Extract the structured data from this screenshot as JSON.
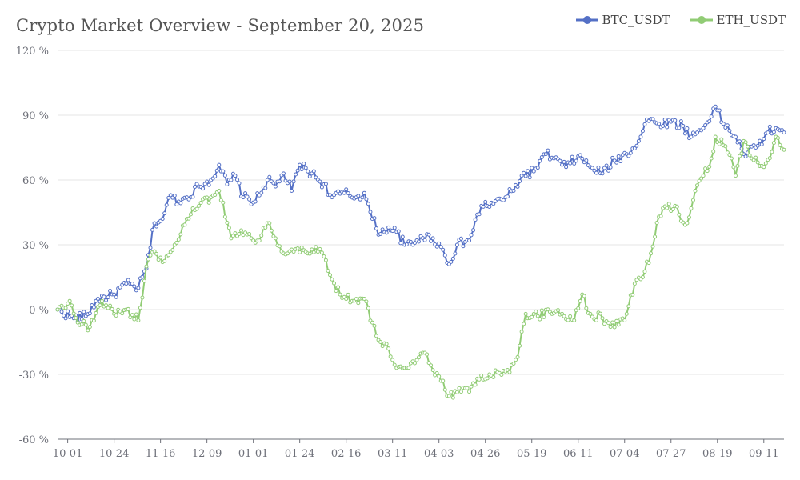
{
  "chart_data": {
    "type": "line",
    "title": "Crypto Market Overview - September 20, 2025",
    "xlabel": "",
    "ylabel": "",
    "y_unit": "%",
    "ylim": [
      -60,
      120
    ],
    "y_ticks": [
      -60,
      -30,
      0,
      30,
      60,
      90,
      120
    ],
    "y_tick_labels": [
      "-60 %",
      "-30 %",
      "0 %",
      "30 %",
      "60 %",
      "90 %",
      "120 %"
    ],
    "x_tick_labels": [
      "10-01",
      "10-24",
      "11-16",
      "12-09",
      "01-01",
      "01-24",
      "02-16",
      "03-11",
      "04-03",
      "04-26",
      "05-19",
      "06-11",
      "07-04",
      "07-27",
      "08-19",
      "09-11"
    ],
    "x_tick_index": [
      5,
      28,
      51,
      74,
      97,
      120,
      143,
      166,
      189,
      212,
      235,
      258,
      281,
      304,
      327,
      350
    ],
    "n_points": 361,
    "grid": true,
    "legend_position": "top-right",
    "series": [
      {
        "name": "BTC_USDT",
        "color": "#5470c6",
        "keypoints": [
          [
            0,
            0
          ],
          [
            8,
            -4
          ],
          [
            14,
            -3
          ],
          [
            20,
            5
          ],
          [
            28,
            7
          ],
          [
            34,
            12
          ],
          [
            40,
            10
          ],
          [
            44,
            19
          ],
          [
            48,
            40
          ],
          [
            52,
            42
          ],
          [
            56,
            53
          ],
          [
            60,
            50
          ],
          [
            64,
            52
          ],
          [
            70,
            57
          ],
          [
            76,
            60
          ],
          [
            80,
            67
          ],
          [
            84,
            58
          ],
          [
            88,
            62
          ],
          [
            92,
            52
          ],
          [
            98,
            50
          ],
          [
            104,
            60
          ],
          [
            108,
            57
          ],
          [
            112,
            63
          ],
          [
            116,
            55
          ],
          [
            120,
            67
          ],
          [
            126,
            63
          ],
          [
            132,
            58
          ],
          [
            136,
            52
          ],
          [
            142,
            54
          ],
          [
            148,
            52
          ],
          [
            152,
            54
          ],
          [
            156,
            42
          ],
          [
            160,
            35
          ],
          [
            164,
            38
          ],
          [
            168,
            36
          ],
          [
            172,
            30
          ],
          [
            176,
            30
          ],
          [
            180,
            34
          ],
          [
            186,
            33
          ],
          [
            190,
            29
          ],
          [
            194,
            21
          ],
          [
            198,
            30
          ],
          [
            204,
            32
          ],
          [
            210,
            48
          ],
          [
            216,
            49
          ],
          [
            222,
            52
          ],
          [
            226,
            55
          ],
          [
            230,
            62
          ],
          [
            236,
            64
          ],
          [
            242,
            72
          ],
          [
            246,
            70
          ],
          [
            252,
            66
          ],
          [
            258,
            71
          ],
          [
            264,
            66
          ],
          [
            270,
            63
          ],
          [
            276,
            69
          ],
          [
            282,
            72
          ],
          [
            288,
            78
          ],
          [
            292,
            88
          ],
          [
            298,
            86
          ],
          [
            304,
            87
          ],
          [
            310,
            85
          ],
          [
            314,
            80
          ],
          [
            320,
            84
          ],
          [
            326,
            94
          ],
          [
            330,
            86
          ],
          [
            336,
            80
          ],
          [
            340,
            72
          ],
          [
            346,
            75
          ],
          [
            352,
            82
          ],
          [
            356,
            84
          ],
          [
            360,
            82
          ]
        ]
      },
      {
        "name": "ETH_USDT",
        "color": "#91cc75",
        "keypoints": [
          [
            0,
            0
          ],
          [
            6,
            4
          ],
          [
            10,
            -6
          ],
          [
            16,
            -8
          ],
          [
            22,
            4
          ],
          [
            28,
            -2
          ],
          [
            34,
            0
          ],
          [
            40,
            -5
          ],
          [
            44,
            20
          ],
          [
            48,
            27
          ],
          [
            52,
            22
          ],
          [
            58,
            30
          ],
          [
            64,
            42
          ],
          [
            70,
            48
          ],
          [
            76,
            52
          ],
          [
            80,
            55
          ],
          [
            86,
            33
          ],
          [
            90,
            35
          ],
          [
            96,
            33
          ],
          [
            100,
            32
          ],
          [
            104,
            40
          ],
          [
            108,
            33
          ],
          [
            112,
            26
          ],
          [
            118,
            28
          ],
          [
            124,
            26
          ],
          [
            130,
            28
          ],
          [
            136,
            14
          ],
          [
            140,
            7
          ],
          [
            146,
            4
          ],
          [
            152,
            5
          ],
          [
            156,
            -6
          ],
          [
            160,
            -15
          ],
          [
            164,
            -18
          ],
          [
            168,
            -27
          ],
          [
            172,
            -27
          ],
          [
            176,
            -24
          ],
          [
            182,
            -20
          ],
          [
            186,
            -28
          ],
          [
            190,
            -33
          ],
          [
            194,
            -40
          ],
          [
            200,
            -38
          ],
          [
            204,
            -38
          ],
          [
            208,
            -32
          ],
          [
            214,
            -30
          ],
          [
            218,
            -29
          ],
          [
            224,
            -29
          ],
          [
            228,
            -22
          ],
          [
            232,
            -2
          ],
          [
            238,
            -3
          ],
          [
            244,
            -1
          ],
          [
            250,
            -2
          ],
          [
            256,
            -5
          ],
          [
            260,
            7
          ],
          [
            264,
            -2
          ],
          [
            270,
            -4
          ],
          [
            274,
            -8
          ],
          [
            278,
            -7
          ],
          [
            282,
            -2
          ],
          [
            286,
            12
          ],
          [
            290,
            15
          ],
          [
            294,
            26
          ],
          [
            298,
            43
          ],
          [
            302,
            47
          ],
          [
            306,
            48
          ],
          [
            308,
            44
          ],
          [
            312,
            40
          ],
          [
            316,
            55
          ],
          [
            320,
            62
          ],
          [
            324,
            70
          ],
          [
            326,
            80
          ],
          [
            330,
            76
          ],
          [
            334,
            70
          ],
          [
            336,
            62
          ],
          [
            340,
            78
          ],
          [
            344,
            70
          ],
          [
            350,
            66
          ],
          [
            354,
            73
          ],
          [
            356,
            80
          ],
          [
            360,
            74
          ]
        ]
      }
    ]
  }
}
